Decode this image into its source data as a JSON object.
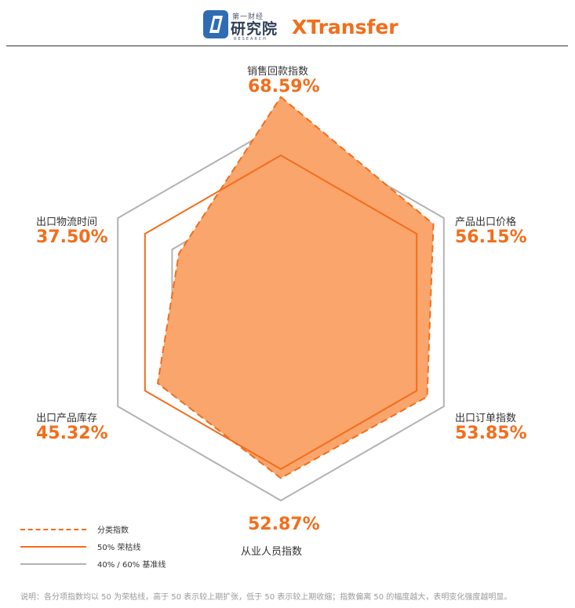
{
  "header": {
    "logo_left_small": "第一财经",
    "logo_left_main": "研究院",
    "logo_left_sub": "RESEARCH",
    "logo_right": "XTransfer"
  },
  "colors": {
    "accent": "#f36d1b",
    "fill": "#f9a56c",
    "baseline": "#b3b3b3"
  },
  "chart_data": {
    "type": "radar",
    "axes": [
      {
        "label": "销售回款指数",
        "value": 68.59,
        "value_text": "68.59%"
      },
      {
        "label": "产品出口价格",
        "value": 56.15,
        "value_text": "56.15%"
      },
      {
        "label": "出口订单指数",
        "value": 53.85,
        "value_text": "53.85%"
      },
      {
        "label": "从业人员指数",
        "value": 52.87,
        "value_text": "52.87%"
      },
      {
        "label": "出口产品库存",
        "value": 45.32,
        "value_text": "45.32%"
      },
      {
        "label": "出口物流时间",
        "value": 37.5,
        "value_text": "37.50%"
      }
    ],
    "series": [
      {
        "name": "分类指数",
        "style": "dashed-filled",
        "values": [
          68.59,
          56.15,
          53.85,
          52.87,
          45.32,
          37.5
        ]
      },
      {
        "name": "50% 荣枯线",
        "style": "solid",
        "values": [
          50,
          50,
          50,
          50,
          50,
          50
        ]
      },
      {
        "name": "40% / 60% 基准线",
        "style": "solid-gray",
        "values": [
          40,
          60
        ]
      }
    ],
    "range": [
      0,
      70
    ]
  },
  "legend": [
    {
      "label": "分类指数"
    },
    {
      "label": "50% 荣枯线"
    },
    {
      "label": "40% / 60% 基准线"
    }
  ],
  "note": "说明：各分项指数均以 50 为荣枯线，高于 50 表示较上期扩张，低于 50 表示较上期收缩；指数偏离 50 的幅度越大，表明变化强度越明显。"
}
